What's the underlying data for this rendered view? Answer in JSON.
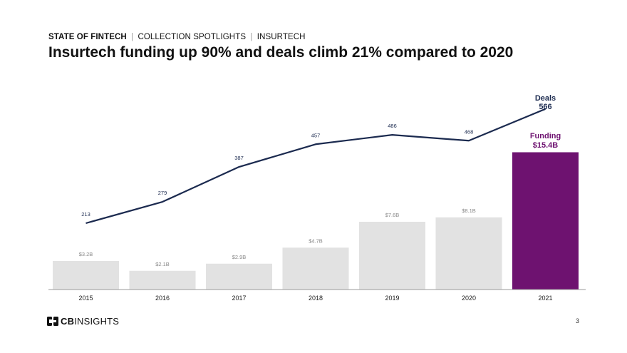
{
  "header": {
    "kicker_primary": "STATE OF FINTECH",
    "kicker_part_2": "COLLECTION SPOTLIGHTS",
    "kicker_part_3": "INSURTECH",
    "title": "Insurtech funding up 90% and deals climb 21% compared to 2020"
  },
  "chart_data": {
    "type": "bar",
    "title": "Insurtech funding up 90% and deals climb 21% compared to 2020",
    "categories": [
      "2015",
      "2016",
      "2017",
      "2018",
      "2019",
      "2020",
      "2021"
    ],
    "series": [
      {
        "name": "Funding",
        "type": "bar",
        "unit": "$B",
        "values": [
          3.2,
          2.1,
          2.9,
          4.7,
          7.6,
          8.1,
          15.4
        ],
        "labels": [
          "$3.2B",
          "$2.1B",
          "$2.9B",
          "$4.7B",
          "$7.6B",
          "$8.1B",
          "$15.4B"
        ],
        "color": "#e2e2e2",
        "highlight_color": "#6e1270"
      },
      {
        "name": "Deals",
        "type": "line",
        "values": [
          213,
          279,
          387,
          457,
          486,
          468,
          566
        ],
        "labels": [
          "213",
          "279",
          "387",
          "457",
          "486",
          "468",
          "566"
        ],
        "color": "#1b2a4f"
      }
    ],
    "callouts": {
      "deals_name": "Deals",
      "deals_value": "566",
      "funding_name": "Funding",
      "funding_value": "$15.4B"
    },
    "xlabel": "",
    "ylabel": "",
    "grid": false
  },
  "footer": {
    "logo_cb": "CB",
    "logo_insights": "INSIGHTS",
    "page_number": "3"
  }
}
